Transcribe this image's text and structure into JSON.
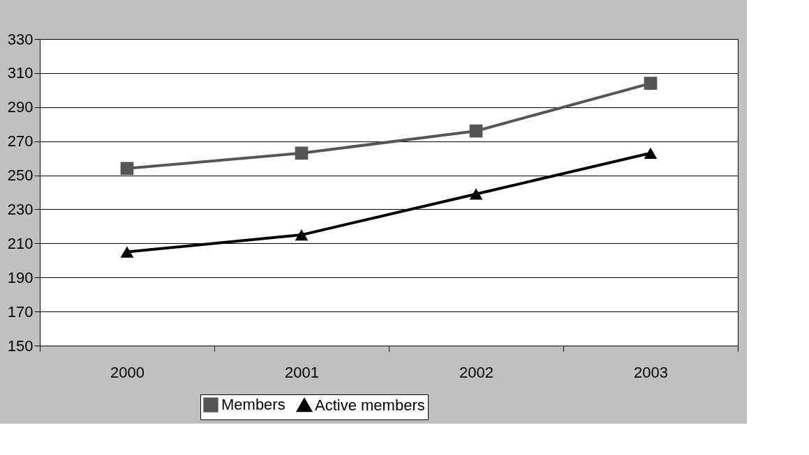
{
  "chart_data": {
    "type": "line",
    "categories": [
      "2000",
      "2001",
      "2002",
      "2003"
    ],
    "series": [
      {
        "name": "Members",
        "color": "#555555",
        "marker": "square",
        "values": [
          254,
          263,
          276,
          304
        ]
      },
      {
        "name": "Active members",
        "color": "#000000",
        "marker": "triangle",
        "values": [
          205,
          215,
          239,
          263
        ]
      }
    ],
    "ylim": [
      150,
      330
    ],
    "yticks": [
      150,
      170,
      190,
      210,
      230,
      250,
      270,
      290,
      310,
      330
    ],
    "grid": "y",
    "legend": "bottom",
    "line_style": "solid"
  }
}
